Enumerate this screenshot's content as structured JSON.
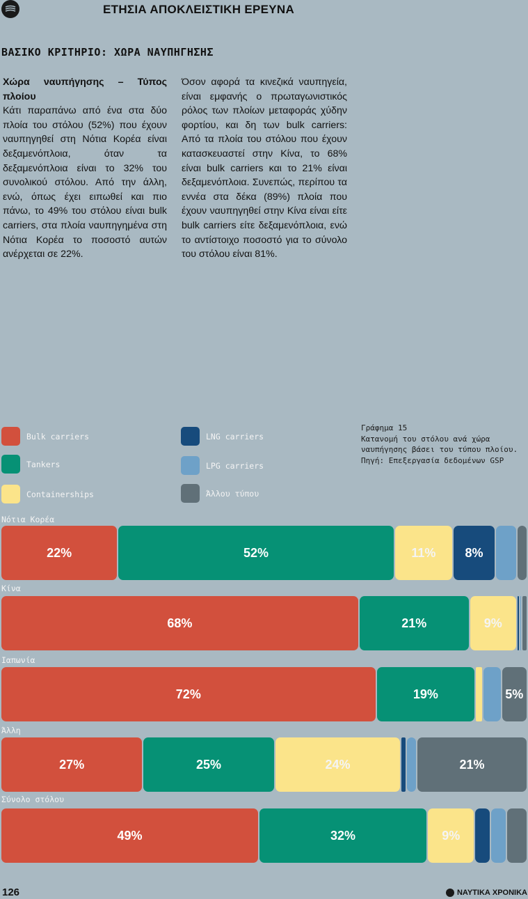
{
  "header": {
    "title": "ΕΤΗΣΙΑ ΑΠΟΚΛΕΙΣΤΙΚΗ ΕΡΕΥΝΑ"
  },
  "section_title": "ΒΑΣΙΚΟ ΚΡΙΤΗΡΙΟ: ΧΩΡΑ ΝΑΥΠΗΓΗΣΗΣ",
  "article": {
    "heading": "Χώρα ναυπήγησης – Τύπος πλοίου",
    "col1": "Κάτι παραπάνω από ένα στα δύο πλοία του στόλου (52%) που έχουν ναυπηγηθεί στη Νότια Κορέα είναι δεξαμενόπλοια, όταν τα δεξαμενόπλοια είναι το 32% του συνολικού στόλου. Από την άλλη, ενώ, όπως έχει ειπωθεί και πιο πάνω, το 49% του στόλου είναι bulk carriers, στα πλοία ναυπηγημένα στη Νότια Κορέα το ποσοστό αυτών ανέρχεται σε 22%.",
    "col2": "Όσον αφορά τα κινεζικά ναυπηγεία, είναι εμφανής ο πρωταγωνιστικός ρόλος των πλοίων μεταφοράς χύδην φορτίου, και δη των bulk carriers: Από τα πλοία του στόλου που έχουν κατασκευαστεί στην Κίνα, το 68% είναι bulk carriers και το 21% είναι δεξαμενόπλοια. Συνεπώς, περίπου τα εννέα στα δέκα (89%) πλοία που έχουν ναυπηγηθεί στην Κίνα είναι είτε bulk carriers είτε δεξαμενόπλοια, ενώ το αντίστοιχο ποσοστό για το σύνολο του στόλου είναι 81%."
  },
  "caption": {
    "line1": "Γράφημα 15",
    "line2": "Κατανομή του στόλου ανά χώρα",
    "line3": "ναυπήγησης βάσει του τύπου πλοίου.",
    "line4": "Πηγή: Επεξεργασία δεδομένων GSP"
  },
  "colors": {
    "Bulk carriers": "#d2503d",
    "Tankers": "#069175",
    "Containerships": "#fbe48a",
    "LNG carriers": "#174b7c",
    "LPG carriers": "#6ea1c8",
    "Άλλου τύπου": "#607078"
  },
  "chart_data": {
    "type": "bar",
    "orientation": "horizontal",
    "stacked": true,
    "percent": true,
    "categories": [
      "Νότια Κορέα",
      "Κίνα",
      "Ιαπωνία",
      "Άλλη",
      "Σύνολο στόλου"
    ],
    "series": [
      {
        "name": "Bulk carriers",
        "values": [
          22,
          68,
          72,
          27,
          49
        ],
        "labels": [
          "22%",
          "68%",
          "72%",
          "27%",
          "49%"
        ]
      },
      {
        "name": "Tankers",
        "values": [
          52,
          21,
          19,
          25,
          32
        ],
        "labels": [
          "52%",
          "21%",
          "19%",
          "25%",
          "32%"
        ]
      },
      {
        "name": "Containerships",
        "values": [
          11,
          9,
          1.5,
          24,
          9
        ],
        "labels": [
          "11%",
          "9%",
          "",
          "24%",
          "9%"
        ]
      },
      {
        "name": "LNG carriers",
        "values": [
          8,
          0.5,
          0,
          1,
          3
        ],
        "labels": [
          "8%",
          "",
          "",
          "",
          ""
        ]
      },
      {
        "name": "LPG carriers",
        "values": [
          4,
          0.5,
          3.5,
          2,
          3
        ],
        "labels": [
          "",
          "",
          "",
          "",
          ""
        ]
      },
      {
        "name": "Άλλου τύπου",
        "values": [
          2,
          1,
          5,
          21,
          4
        ],
        "labels": [
          "",
          "",
          "5%",
          "21%",
          ""
        ]
      }
    ],
    "legend_position": "top-left",
    "grid": false
  },
  "footer": {
    "page_number": "126",
    "brand": "ΝΑΥΤΙΚΑ ΧΡΟΝΙΚΑ"
  }
}
